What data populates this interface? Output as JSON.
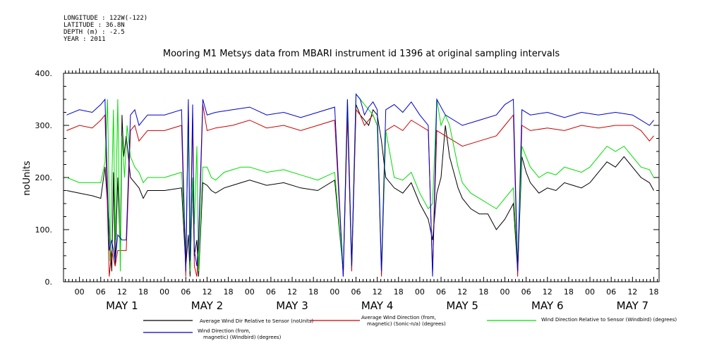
{
  "meta": {
    "longitude": "LONGITUDE : 122W(-122)",
    "latitude": "LATITUDE : 36.8N",
    "depth": "DEPTH (m) : -2.5",
    "year": "YEAR : 2011"
  },
  "chart_data": {
    "type": "line",
    "title": "Mooring M1 Metsys data from MBARI instrument id 1396 at original sampling intervals",
    "ylabel": "noUnits",
    "xlabel": "",
    "ylim": [
      0,
      400
    ],
    "xlim": [
      -0.1875,
      6.8125
    ],
    "y_ticks": [
      0,
      100,
      200,
      300,
      400
    ],
    "y_tick_labels": [
      "0.",
      "100.",
      "200.",
      "300.",
      "400."
    ],
    "hour_ticks": [
      "00",
      "06",
      "12",
      "18",
      "00",
      "06",
      "12",
      "18",
      "00",
      "06",
      "12",
      "18",
      "00",
      "06",
      "12",
      "18",
      "00",
      "06",
      "12",
      "18",
      "00",
      "06",
      "12",
      "18",
      "00",
      "06",
      "12",
      "18"
    ],
    "day_labels": [
      "MAY 1",
      "MAY 2",
      "MAY 3",
      "MAY 4",
      "MAY 5",
      "MAY 6",
      "MAY 7"
    ],
    "grid": false,
    "legend_placement": "bottom",
    "series": [
      {
        "name": "Average Wind Dir Relative to Sensor (noUnits)",
        "color": "#000000",
        "x": [
          -0.15,
          0,
          0.15,
          0.25,
          0.3,
          0.35,
          0.38,
          0.4,
          0.42,
          0.45,
          0.48,
          0.5,
          0.52,
          0.55,
          0.6,
          0.65,
          0.7,
          0.75,
          0.8,
          1.0,
          1.2,
          1.25,
          1.28,
          1.3,
          1.33,
          1.35,
          1.38,
          1.4,
          1.45,
          1.5,
          1.55,
          1.6,
          1.7,
          1.8,
          1.9,
          2.0,
          2.2,
          2.4,
          2.6,
          2.8,
          3.0,
          3.1,
          3.15,
          3.2,
          3.25,
          3.3,
          3.35,
          3.4,
          3.45,
          3.5,
          3.55,
          3.6,
          3.7,
          3.8,
          3.9,
          4.0,
          4.1,
          4.15,
          4.2,
          4.25,
          4.3,
          4.35,
          4.4,
          4.45,
          4.5,
          4.6,
          4.7,
          4.8,
          4.9,
          5.0,
          5.1,
          5.15,
          5.2,
          5.25,
          5.3,
          5.35,
          5.4,
          5.5,
          5.6,
          5.7,
          5.8,
          5.9,
          6.0,
          6.1,
          6.2,
          6.3,
          6.4,
          6.5,
          6.6,
          6.7,
          6.75
        ],
        "y": [
          175,
          170,
          165,
          160,
          220,
          100,
          20,
          210,
          30,
          200,
          60,
          320,
          240,
          280,
          200,
          190,
          180,
          160,
          175,
          175,
          180,
          30,
          90,
          10,
          200,
          50,
          80,
          10,
          190,
          185,
          175,
          170,
          180,
          185,
          190,
          195,
          185,
          190,
          180,
          175,
          195,
          20,
          330,
          30,
          340,
          320,
          310,
          300,
          330,
          320,
          270,
          200,
          180,
          170,
          190,
          150,
          120,
          80,
          170,
          200,
          300,
          240,
          210,
          180,
          160,
          140,
          130,
          130,
          100,
          120,
          150,
          20,
          240,
          210,
          190,
          180,
          170,
          180,
          175,
          190,
          185,
          180,
          190,
          210,
          230,
          220,
          240,
          220,
          200,
          190,
          175
        ]
      },
      {
        "name": "Average Wind Direction (from, magnetic) (Sonic-n/a) (degrees)",
        "color": "#cc0000",
        "x": [
          -0.15,
          0,
          0.15,
          0.25,
          0.3,
          0.35,
          0.38,
          0.42,
          0.45,
          0.5,
          0.55,
          0.6,
          0.65,
          0.7,
          0.75,
          0.8,
          1.0,
          1.2,
          1.25,
          1.28,
          1.3,
          1.33,
          1.35,
          1.38,
          1.4,
          1.45,
          1.5,
          1.6,
          1.8,
          2.0,
          2.2,
          2.4,
          2.6,
          2.8,
          3.0,
          3.1,
          3.15,
          3.2,
          3.25,
          3.3,
          3.35,
          3.4,
          3.45,
          3.5,
          3.55,
          3.6,
          3.7,
          3.8,
          3.9,
          4.0,
          4.1,
          4.15,
          4.2,
          4.3,
          4.5,
          4.7,
          4.9,
          5.0,
          5.1,
          5.15,
          5.2,
          5.3,
          5.5,
          5.7,
          5.9,
          6.1,
          6.3,
          6.5,
          6.6,
          6.7,
          6.75
        ],
        "y": [
          290,
          300,
          295,
          310,
          320,
          10,
          60,
          30,
          60,
          60,
          60,
          290,
          300,
          270,
          280,
          290,
          290,
          300,
          10,
          340,
          20,
          320,
          30,
          10,
          60,
          340,
          290,
          295,
          300,
          310,
          295,
          300,
          290,
          300,
          310,
          10,
          320,
          20,
          330,
          320,
          300,
          310,
          320,
          300,
          10,
          290,
          300,
          290,
          310,
          300,
          290,
          20,
          290,
          280,
          260,
          270,
          280,
          300,
          320,
          10,
          300,
          290,
          295,
          290,
          300,
          295,
          300,
          300,
          290,
          270,
          280
        ]
      },
      {
        "name": "Wind Direction Relative to Sensor (Windbird) (degrees)",
        "color": "#00dd00",
        "x": [
          -0.15,
          0,
          0.15,
          0.25,
          0.3,
          0.33,
          0.36,
          0.4,
          0.42,
          0.45,
          0.48,
          0.5,
          0.53,
          0.56,
          0.6,
          0.65,
          0.7,
          0.75,
          0.8,
          1.0,
          1.2,
          1.25,
          1.28,
          1.3,
          1.33,
          1.35,
          1.38,
          1.4,
          1.45,
          1.5,
          1.55,
          1.6,
          1.7,
          1.8,
          1.9,
          2.0,
          2.2,
          2.4,
          2.6,
          2.8,
          3.0,
          3.1,
          3.15,
          3.2,
          3.25,
          3.3,
          3.35,
          3.4,
          3.45,
          3.5,
          3.55,
          3.6,
          3.7,
          3.8,
          3.9,
          4.0,
          4.1,
          4.15,
          4.2,
          4.25,
          4.3,
          4.35,
          4.4,
          4.45,
          4.5,
          4.6,
          4.7,
          4.8,
          4.9,
          5.0,
          5.1,
          5.15,
          5.2,
          5.25,
          5.3,
          5.35,
          5.4,
          5.5,
          5.6,
          5.7,
          5.8,
          5.9,
          6.0,
          6.1,
          6.2,
          6.3,
          6.4,
          6.5,
          6.6,
          6.7,
          6.75
        ],
        "y": [
          200,
          190,
          190,
          190,
          230,
          350,
          40,
          330,
          80,
          350,
          20,
          280,
          200,
          300,
          240,
          220,
          210,
          190,
          200,
          200,
          210,
          60,
          300,
          20,
          200,
          110,
          260,
          20,
          220,
          220,
          200,
          195,
          210,
          215,
          220,
          220,
          210,
          215,
          205,
          195,
          210,
          20,
          350,
          30,
          360,
          350,
          340,
          330,
          320,
          300,
          20,
          290,
          200,
          195,
          210,
          170,
          140,
          150,
          350,
          300,
          320,
          300,
          260,
          220,
          190,
          170,
          160,
          150,
          140,
          160,
          180,
          30,
          260,
          240,
          220,
          210,
          200,
          210,
          205,
          220,
          215,
          210,
          220,
          240,
          260,
          250,
          260,
          240,
          220,
          215,
          200
        ]
      },
      {
        "name": "Wind Direction (from, magnetic) (Windbird) (degrees)",
        "color": "#0000cc",
        "x": [
          -0.15,
          0,
          0.15,
          0.25,
          0.3,
          0.35,
          0.38,
          0.42,
          0.45,
          0.5,
          0.55,
          0.6,
          0.65,
          0.7,
          0.75,
          0.8,
          1.0,
          1.2,
          1.25,
          1.28,
          1.3,
          1.33,
          1.35,
          1.38,
          1.4,
          1.45,
          1.5,
          1.6,
          1.8,
          2.0,
          2.2,
          2.4,
          2.6,
          2.8,
          3.0,
          3.1,
          3.15,
          3.2,
          3.25,
          3.3,
          3.35,
          3.4,
          3.45,
          3.5,
          3.55,
          3.6,
          3.7,
          3.8,
          3.9,
          4.0,
          4.1,
          4.15,
          4.2,
          4.3,
          4.5,
          4.7,
          4.9,
          5.0,
          5.1,
          5.15,
          5.2,
          5.3,
          5.5,
          5.7,
          5.9,
          6.1,
          6.3,
          6.5,
          6.6,
          6.7,
          6.75
        ],
        "y": [
          320,
          330,
          325,
          340,
          350,
          60,
          80,
          40,
          90,
          80,
          80,
          320,
          330,
          300,
          310,
          320,
          320,
          330,
          20,
          350,
          40,
          340,
          60,
          30,
          80,
          350,
          320,
          325,
          330,
          335,
          320,
          325,
          315,
          325,
          335,
          10,
          350,
          30,
          360,
          350,
          320,
          335,
          345,
          330,
          20,
          330,
          340,
          325,
          345,
          320,
          300,
          10,
          350,
          320,
          300,
          310,
          320,
          340,
          350,
          20,
          330,
          320,
          325,
          315,
          325,
          320,
          325,
          320,
          310,
          300,
          310
        ]
      }
    ]
  }
}
